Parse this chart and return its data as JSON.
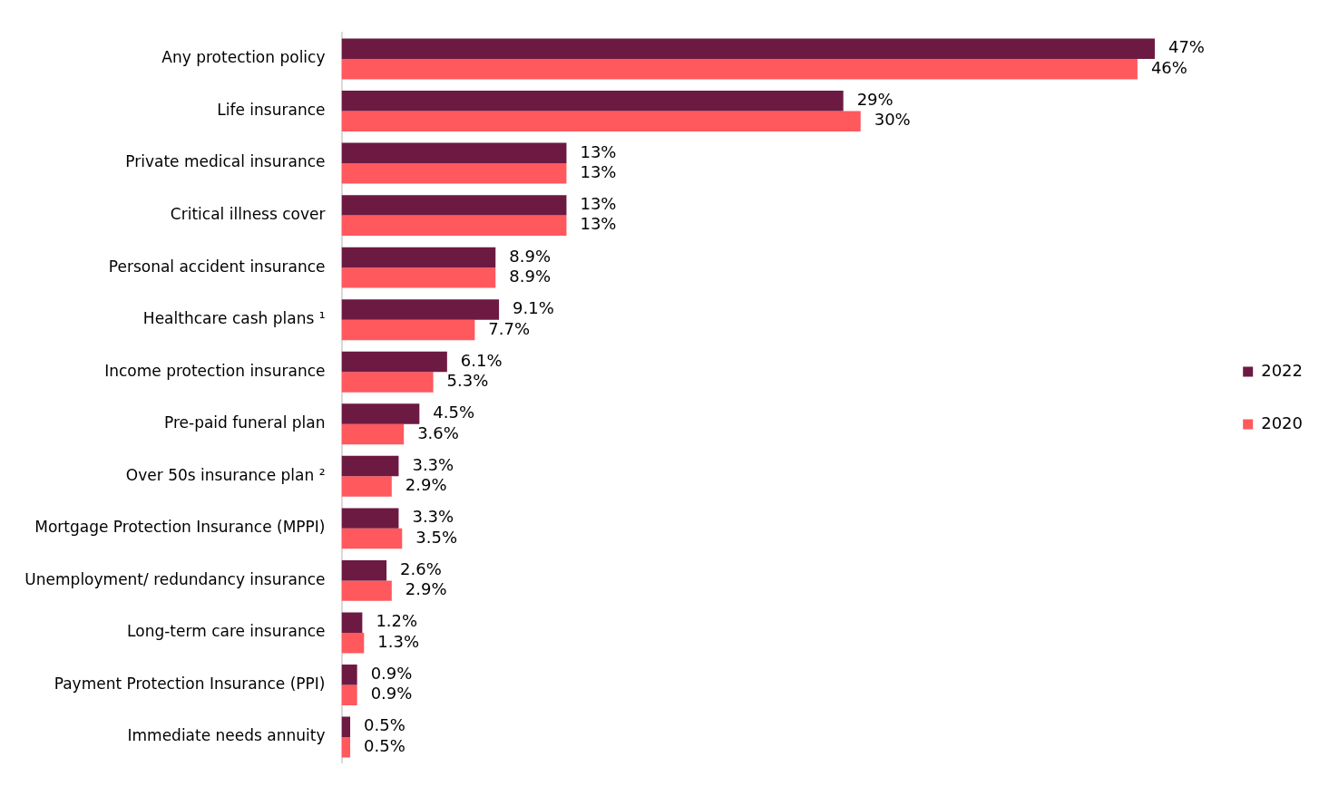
{
  "chart_data": {
    "type": "bar",
    "orientation": "horizontal",
    "grid": false,
    "legend": "right",
    "categories": [
      "Any protection policy",
      "Life insurance",
      "Private medical insurance",
      "Critical illness cover",
      "Personal accident insurance",
      "Healthcare cash plans ¹",
      "Income protection insurance",
      "Pre-paid funeral plan",
      "Over 50s insurance plan ²",
      "Mortgage Protection Insurance (MPPI)",
      "Unemployment/ redundancy insurance",
      "Long-term care insurance",
      "Payment Protection Insurance (PPI)",
      "Immediate needs annuity"
    ],
    "series": [
      {
        "name": "2022",
        "color": "#6d1a42",
        "values": [
          47,
          29,
          13,
          13,
          8.9,
          9.1,
          6.1,
          4.5,
          3.3,
          3.3,
          2.6,
          1.2,
          0.9,
          0.5
        ],
        "value_labels": [
          "47%",
          "29%",
          "13%",
          "13%",
          "8.9%",
          "9.1%",
          "6.1%",
          "4.5%",
          "3.3%",
          "3.3%",
          "2.6%",
          "1.2%",
          "0.9%",
          "0.5%"
        ]
      },
      {
        "name": "2020",
        "color": "#ff585d",
        "values": [
          46,
          30,
          13,
          13,
          8.9,
          7.7,
          5.3,
          3.6,
          2.9,
          3.5,
          2.9,
          1.3,
          0.9,
          0.5
        ],
        "value_labels": [
          "46%",
          "30%",
          "13%",
          "13%",
          "8.9%",
          "7.7%",
          "5.3%",
          "3.6%",
          "2.9%",
          "3.5%",
          "2.9%",
          "1.3%",
          "0.9%",
          "0.5%"
        ]
      }
    ]
  }
}
